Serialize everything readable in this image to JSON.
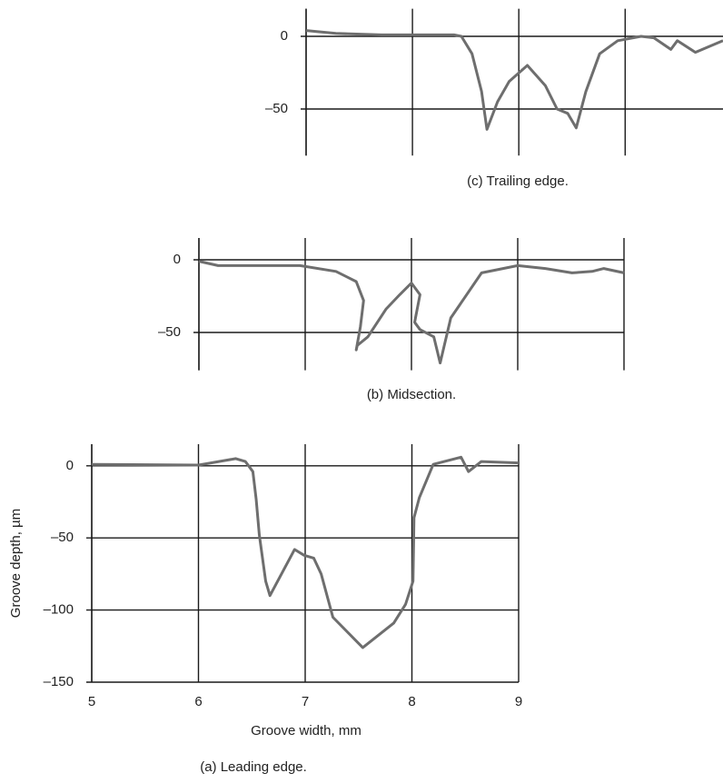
{
  "chart_data": [
    {
      "type": "line",
      "caption": "(c) Trailing edge.",
      "color": "#6e6e6e",
      "grid": true,
      "xtick_labels": false,
      "xlim": [
        7,
        10.92
      ],
      "xticks": [
        7,
        8,
        9,
        10
      ],
      "ylim": [
        -82,
        19
      ],
      "yticks": [
        0,
        {
          "value": -50,
          "label": "–50"
        }
      ],
      "x": [
        7,
        7.28,
        7.71,
        8.39,
        8.46,
        8.56,
        8.65,
        8.7,
        8.8,
        8.91,
        9.08,
        9.25,
        9.36,
        9.46,
        9.54,
        9.63,
        9.76,
        9.93,
        10.15,
        10.27,
        10.43,
        10.49,
        10.66,
        10.92
      ],
      "values": [
        4,
        2,
        1,
        1,
        0,
        -12,
        -38,
        -64,
        -45,
        -31,
        -20,
        -34,
        -50,
        -53,
        -63,
        -38,
        -12,
        -3,
        0,
        -1,
        -9,
        -3,
        -11,
        -3
      ]
    },
    {
      "type": "line",
      "caption": "(b) Midsection.",
      "color": "#6e6e6e",
      "grid": true,
      "xtick_labels": false,
      "xlim": [
        6,
        10
      ],
      "xticks": [
        6,
        7,
        8,
        9,
        10
      ],
      "ylim": [
        -76,
        15
      ],
      "yticks": [
        0,
        {
          "value": -50,
          "label": "–50"
        }
      ],
      "x": [
        6,
        6.18,
        6.95,
        7.29,
        7.48,
        7.55,
        7.52,
        7.48,
        7.49,
        7.59,
        7.76,
        7.89,
        8.0,
        8.08,
        8.03,
        8.08,
        8.21,
        8.27,
        8.37,
        8.66,
        9.0,
        9.26,
        9.51,
        9.7,
        9.81,
        10.0
      ],
      "values": [
        -1,
        -4,
        -4,
        -8,
        -15,
        -28,
        -46,
        -62,
        -59,
        -53,
        -34,
        -24,
        -16,
        -24,
        -43,
        -48,
        -53,
        -71,
        -40,
        -9,
        -4,
        -6,
        -9,
        -8,
        -6,
        -9
      ]
    },
    {
      "type": "line",
      "caption": "(a) Leading edge.",
      "x_label": "Groove width, mm",
      "y_label": "Groove depth, µm",
      "color": "#6e6e6e",
      "grid": true,
      "xtick_labels": true,
      "xlim": [
        5,
        9
      ],
      "xticks": [
        5,
        6,
        7,
        8,
        9
      ],
      "ylim": [
        -150,
        15
      ],
      "yticks": [
        0,
        {
          "value": -50,
          "label": "–50"
        },
        {
          "value": -100,
          "label": "–100"
        },
        {
          "value": -150,
          "label": "–150"
        }
      ],
      "x": [
        5,
        6.0,
        6.35,
        6.44,
        6.51,
        6.54,
        6.57,
        6.63,
        6.67,
        6.9,
        6.99,
        7.08,
        7.15,
        7.26,
        7.54,
        7.83,
        7.94,
        8.01,
        8.02,
        8.07,
        8.2,
        8.46,
        8.53,
        8.65,
        9.0
      ],
      "values": [
        1,
        0.5,
        5,
        3,
        -4,
        -23,
        -48,
        -80,
        -90,
        -58,
        -62,
        -64,
        -75,
        -105,
        -126,
        -109,
        -96,
        -80,
        -36,
        -22,
        1,
        6,
        -4,
        3,
        2
      ]
    }
  ]
}
